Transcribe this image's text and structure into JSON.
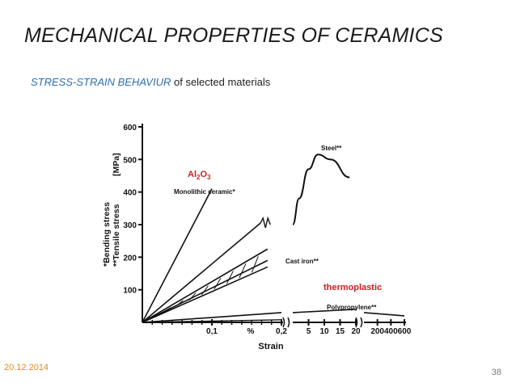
{
  "slide": {
    "title": "MECHANICAL PROPERTIES OF CERAMICS",
    "subtitle_accent": "STRESS-STRAIN BEHAVIUR",
    "subtitle_rest": " of selected materials",
    "date": "20.12.2014",
    "page_number": "38"
  },
  "chart_data": {
    "type": "line",
    "ylabel_1": "*Bending stress",
    "ylabel_2": "**Tensile stress",
    "ylabel_unit": "[MPa]",
    "xlabel": "Strain",
    "ylim": [
      0,
      600
    ],
    "yticks": [
      100,
      200,
      300,
      400,
      500,
      600
    ],
    "x_segments": [
      {
        "unit": "%",
        "ticks": [
          "0,1",
          "0,2"
        ],
        "range": [
          0,
          0.2
        ]
      },
      {
        "unit": "",
        "ticks": [
          "5",
          "10",
          "15",
          "20"
        ],
        "range": [
          0,
          20
        ]
      },
      {
        "unit": "",
        "ticks": [
          "200",
          "400",
          "600"
        ],
        "range": [
          0,
          600
        ]
      }
    ],
    "x_unit_label": "%",
    "annotations": {
      "al2o3": {
        "parts": [
          {
            "t": "Al"
          },
          {
            "t": "2",
            "sub": true
          },
          {
            "t": "O"
          },
          {
            "t": "3",
            "sub": true
          }
        ]
      },
      "thermoplastic": "thermoplastic"
    },
    "series": [
      {
        "name": "Monolithic ceramic*",
        "segment": 0,
        "x": [
          0,
          0.1
        ],
        "y": [
          0,
          410
        ]
      },
      {
        "name": "Steel**",
        "segment": 1,
        "x": [
          0,
          2,
          5,
          8,
          12,
          18
        ],
        "y": [
          300,
          380,
          470,
          515,
          500,
          445
        ]
      },
      {
        "name": "Cast iron**",
        "segment": 0,
        "x": [
          0,
          0.18
        ],
        "y": [
          0,
          170
        ]
      },
      {
        "name": "Polypropylene**",
        "segment": 1,
        "x": [
          0,
          20
        ],
        "y": [
          30,
          40
        ]
      }
    ],
    "steel_elastic": {
      "x": [
        0,
        0.17
      ],
      "y": [
        0,
        305
      ]
    },
    "cast_iron_band_upper": {
      "x": [
        0,
        0.18
      ],
      "y": [
        0,
        225
      ]
    },
    "cast_iron_band_lower": {
      "x": [
        0,
        0.18
      ],
      "y": [
        0,
        190
      ]
    },
    "polypropylene_initial": {
      "x": [
        0,
        0.2
      ],
      "y": [
        0,
        30
      ]
    },
    "polypropylene_end": {
      "segment": 2,
      "x": [
        0,
        600
      ],
      "y": [
        30,
        20
      ]
    }
  }
}
